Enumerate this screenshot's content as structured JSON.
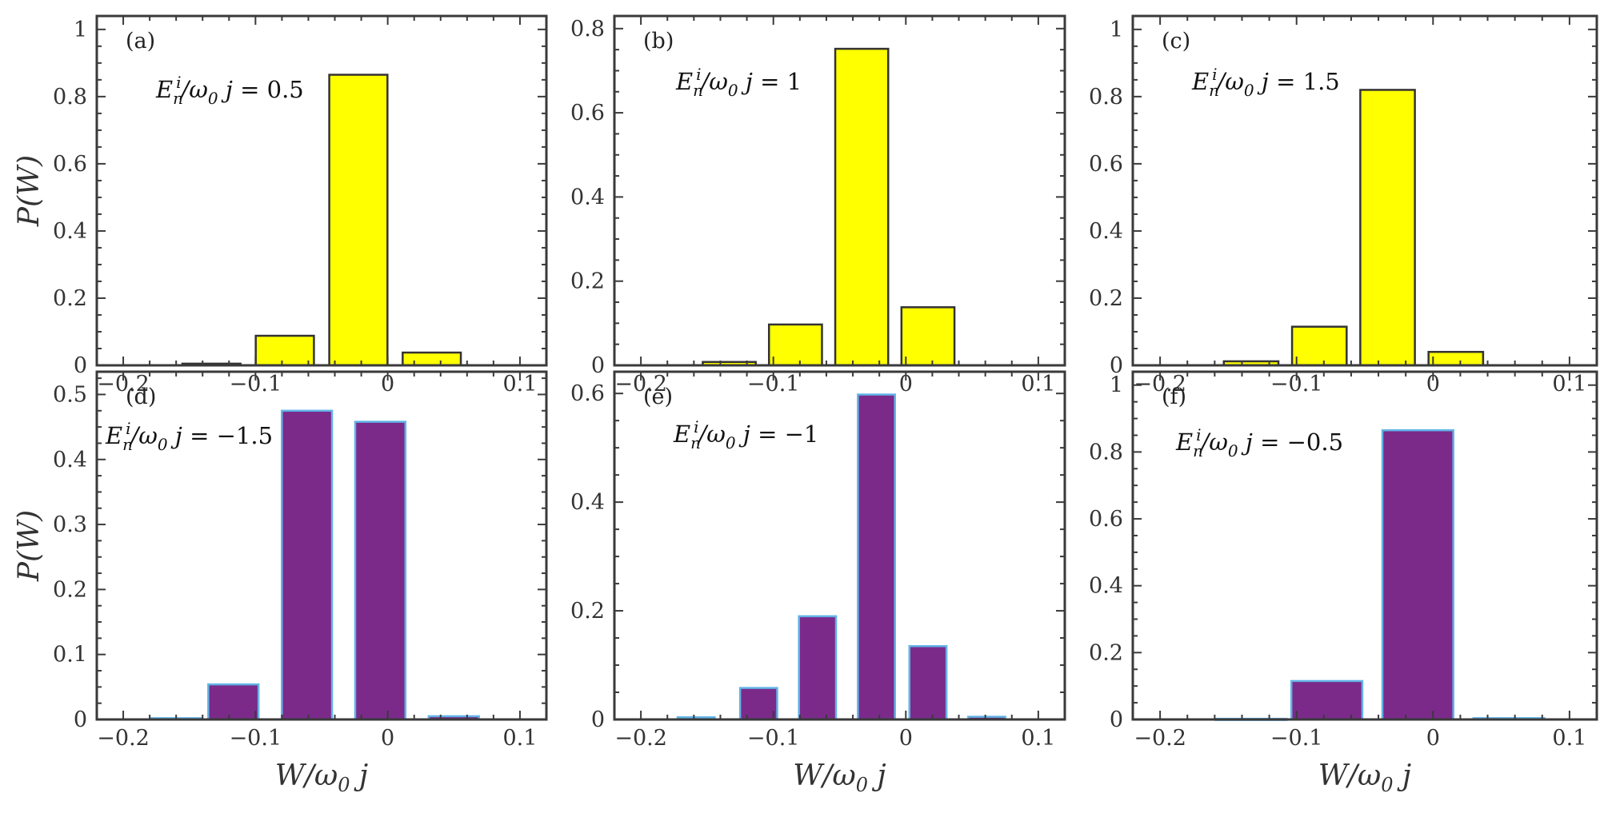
{
  "chart_data": [
    {
      "id": "a",
      "type": "bar",
      "panel_label": "(a)",
      "annotation": "E_n^i/ω_0 j = 0.5",
      "ylabel": "P(W)",
      "xlabel": "",
      "xlim": [
        -0.22,
        0.12
      ],
      "ylim": [
        0,
        1.04
      ],
      "xticks": [
        -0.2,
        -0.1,
        0,
        0.1
      ],
      "xtick_labels": [
        "-0.2",
        "-0.1",
        "0",
        "0.1"
      ],
      "yticks": [
        0,
        0.2,
        0.4,
        0.6,
        0.8,
        1
      ],
      "ytick_labels": [
        "0",
        "0.2",
        "0.4",
        "0.6",
        "0.8",
        "1"
      ],
      "bar_width": 0.044,
      "fill": "#ffff00",
      "edge": "#333333",
      "x": [
        -0.1333,
        -0.0778,
        -0.0222,
        0.0333
      ],
      "values": [
        0.005,
        0.088,
        0.865,
        0.038
      ]
    },
    {
      "id": "b",
      "type": "bar",
      "panel_label": "(b)",
      "annotation": "E_n^i/ω_0 j = 1",
      "ylabel": "",
      "xlabel": "",
      "xlim": [
        -0.22,
        0.12
      ],
      "ylim": [
        0,
        0.83
      ],
      "xticks": [
        -0.2,
        -0.1,
        0,
        0.1
      ],
      "xtick_labels": [
        "-0.2",
        "-0.1",
        "0",
        "0.1"
      ],
      "yticks": [
        0,
        0.2,
        0.4,
        0.6,
        0.8
      ],
      "ytick_labels": [
        "0",
        "0.2",
        "0.4",
        "0.6",
        "0.8"
      ],
      "bar_width": 0.04,
      "fill": "#ffff00",
      "edge": "#333333",
      "x": [
        -0.1333,
        -0.0833,
        -0.0333,
        0.0167
      ],
      "values": [
        0.008,
        0.097,
        0.752,
        0.138
      ]
    },
    {
      "id": "c",
      "type": "bar",
      "panel_label": "(c)",
      "annotation": "E_n^i/ω_0 j = 1.5",
      "ylabel": "",
      "xlabel": "",
      "xlim": [
        -0.22,
        0.12
      ],
      "ylim": [
        0,
        1.04
      ],
      "xticks": [
        -0.2,
        -0.1,
        0,
        0.1
      ],
      "xtick_labels": [
        "-0.2",
        "-0.1",
        "0",
        "0.1"
      ],
      "yticks": [
        0,
        0.2,
        0.4,
        0.6,
        0.8,
        1
      ],
      "ytick_labels": [
        "0",
        "0.2",
        "0.4",
        "0.6",
        "0.8",
        "1"
      ],
      "bar_width": 0.04,
      "fill": "#ffff00",
      "edge": "#333333",
      "x": [
        -0.1333,
        -0.0833,
        -0.0333,
        0.0167
      ],
      "values": [
        0.012,
        0.115,
        0.82,
        0.04
      ]
    },
    {
      "id": "d",
      "type": "bar",
      "panel_label": "(d)",
      "annotation": "E_n^i/ω_0 j = −1.5",
      "ylabel": "P(W)",
      "xlabel": "W/ω_0 j",
      "xlim": [
        -0.22,
        0.12
      ],
      "ylim": [
        0,
        0.535
      ],
      "xticks": [
        -0.2,
        -0.1,
        0,
        0.1
      ],
      "xtick_labels": [
        "-0.2",
        "-0.1",
        "0",
        "0.1"
      ],
      "yticks": [
        0,
        0.1,
        0.2,
        0.3,
        0.4,
        0.5
      ],
      "ytick_labels": [
        "0",
        "0.1",
        "0.2",
        "0.3",
        "0.4",
        "0.5"
      ],
      "bar_width": 0.038,
      "fill": "#7b2a8a",
      "edge": "#62b4e6",
      "x": [
        -0.16,
        -0.1167,
        -0.0611,
        -0.0056,
        0.05
      ],
      "values": [
        0.002,
        0.054,
        0.475,
        0.458,
        0.005
      ]
    },
    {
      "id": "e",
      "type": "bar",
      "panel_label": "(e)",
      "annotation": "E_n^i/ω_0 j = −1",
      "ylabel": "",
      "xlabel": "W/ω_0 j",
      "xlim": [
        -0.22,
        0.12
      ],
      "ylim": [
        0,
        0.64
      ],
      "xticks": [
        -0.2,
        -0.1,
        0,
        0.1
      ],
      "xtick_labels": [
        "-0.2",
        "-0.1",
        "0",
        "0.1"
      ],
      "yticks": [
        0,
        0.2,
        0.4,
        0.6
      ],
      "ytick_labels": [
        "0",
        "0.2",
        "0.4",
        "0.6"
      ],
      "bar_width": 0.028,
      "fill": "#7b2a8a",
      "edge": "#62b4e6",
      "x": [
        -0.1583,
        -0.1111,
        -0.0667,
        -0.0222,
        0.0167,
        0.0611
      ],
      "values": [
        0.004,
        0.058,
        0.19,
        0.598,
        0.135,
        0.005
      ]
    },
    {
      "id": "f",
      "type": "bar",
      "panel_label": "(f)",
      "annotation": "E_n^i/ω_0 j = −0.5",
      "ylabel": "",
      "xlabel": "W/ω_0 j",
      "xlim": [
        -0.22,
        0.12
      ],
      "ylim": [
        0,
        1.04
      ],
      "xticks": [
        -0.2,
        -0.1,
        0,
        0.1
      ],
      "xtick_labels": [
        "-0.2",
        "-0.1",
        "0",
        "0.1"
      ],
      "yticks": [
        0,
        0.2,
        0.4,
        0.6,
        0.8,
        1
      ],
      "ytick_labels": [
        "0",
        "0.2",
        "0.4",
        "0.6",
        "0.8",
        "1"
      ],
      "bar_width": 0.052,
      "fill": "#7b2a8a",
      "edge": "#62b4e6",
      "x": [
        -0.1333,
        -0.0778,
        -0.0111,
        0.0556
      ],
      "values": [
        0.002,
        0.115,
        0.865,
        0.004
      ]
    }
  ]
}
